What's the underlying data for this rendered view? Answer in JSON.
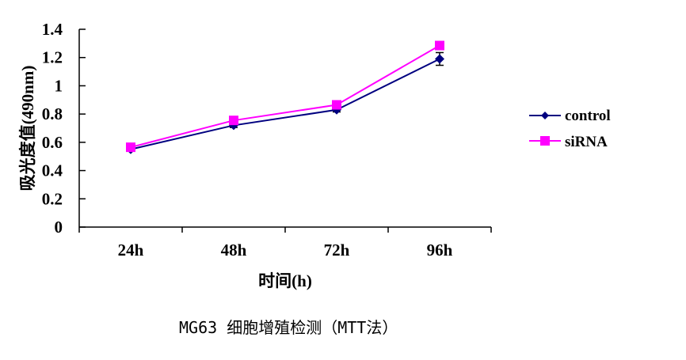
{
  "chart_data": {
    "type": "line",
    "title": "",
    "caption": "MG63 细胞增殖检测（MTT法）",
    "xlabel": "时间(h)",
    "ylabel": "吸光度值(490nm)",
    "categories": [
      "24h",
      "48h",
      "72h",
      "96h"
    ],
    "ylim": [
      0,
      1.4
    ],
    "yticks": [
      "0",
      "0.2",
      "0.4",
      "0.6",
      "0.8",
      "1",
      "1.2",
      "1.4"
    ],
    "grid": false,
    "legend_position": "right",
    "series": [
      {
        "name": "control",
        "color": "#000080",
        "marker": "diamond",
        "values": [
          0.55,
          0.72,
          0.83,
          1.19
        ],
        "error": [
          0.01,
          0.015,
          0.015,
          0.045
        ]
      },
      {
        "name": "siRNA",
        "color": "#FF00FF",
        "marker": "square",
        "values": [
          0.565,
          0.755,
          0.865,
          1.285
        ],
        "error": [
          0,
          0,
          0,
          0
        ]
      }
    ]
  },
  "legend": {
    "items": [
      {
        "label": "control"
      },
      {
        "label": "siRNA"
      }
    ]
  }
}
